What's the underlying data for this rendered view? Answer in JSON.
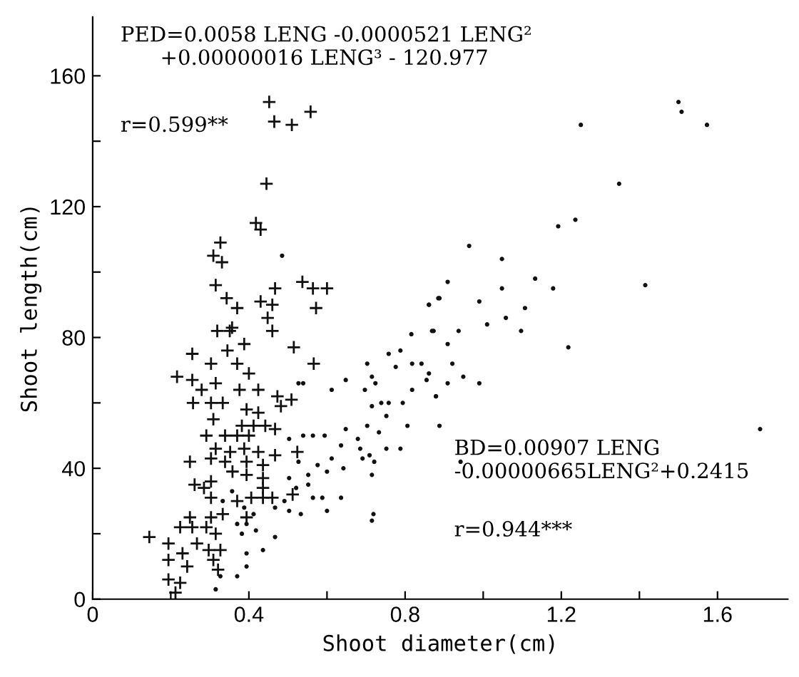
{
  "chart_data": {
    "type": "scatter",
    "xlabel": "Shoot diameter(cm)",
    "ylabel": "Shoot length(cm)",
    "xlim": [
      0,
      1.78
    ],
    "ylim": [
      0,
      178
    ],
    "xticks": [
      0,
      {
        "value": 0.2,
        "label": null
      },
      0.4,
      {
        "value": 0.6,
        "label": null
      },
      0.8,
      {
        "value": 1.0,
        "label": null
      },
      1.2,
      {
        "value": 1.4,
        "label": null
      },
      1.6
    ],
    "yticks": [
      0,
      {
        "value": 20,
        "label": null
      },
      40,
      {
        "value": 60,
        "label": null
      },
      80,
      {
        "value": 100,
        "label": null
      },
      120,
      {
        "value": 140,
        "label": null
      },
      160
    ],
    "grid": false,
    "legend": false,
    "annotations": [
      "PED=0.0058 LENG -0.0000521 LENG²\n      +0.00000016 LENG³ - 120.977",
      "r=0.599**",
      "BD=0.00907 LENG\n-0.00000665LENG²+0.2415",
      "r=0.944***"
    ],
    "series": [
      {
        "color": "#111111",
        "marker": "cross",
        "x": [
          0.452,
          0.465,
          0.51,
          0.558,
          0.445,
          0.418,
          0.43,
          0.327,
          0.309,
          0.331,
          0.315,
          0.467,
          0.537,
          0.564,
          0.6,
          0.343,
          0.37,
          0.43,
          0.46,
          0.572,
          0.448,
          0.46,
          0.319,
          0.357,
          0.351,
          0.388,
          0.345,
          0.515,
          0.566,
          0.255,
          0.216,
          0.255,
          0.303,
          0.37,
          0.4,
          0.279,
          0.315,
          0.376,
          0.424,
          0.257,
          0.303,
          0.333,
          0.394,
          0.424,
          0.473,
          0.509,
          0.482,
          0.309,
          0.382,
          0.412,
          0.442,
          0.467,
          0.291,
          0.339,
          0.37,
          0.4,
          0.315,
          0.352,
          0.388,
          0.424,
          0.467,
          0.524,
          0.249,
          0.303,
          0.339,
          0.394,
          0.436,
          0.261,
          0.285,
          0.303,
          0.358,
          0.394,
          0.436,
          0.436,
          0.303,
          0.37,
          0.406,
          0.436,
          0.46,
          0.512,
          0.249,
          0.303,
          0.333,
          0.394,
          0.145,
          0.224,
          0.255,
          0.291,
          0.315,
          0.194,
          0.23,
          0.267,
          0.297,
          0.327,
          0.194,
          0.242,
          0.309,
          0.321,
          0.194,
          0.224,
          0.212
        ],
        "values": [
          152,
          146,
          145,
          149,
          127,
          115,
          113,
          109,
          105,
          103,
          96,
          95,
          97,
          95,
          95,
          92,
          89,
          91,
          90,
          89,
          86,
          82,
          82,
          83,
          82,
          78,
          76,
          77,
          72,
          75,
          68,
          67,
          72,
          72,
          69,
          64,
          66,
          64,
          64,
          60,
          60,
          60,
          58,
          57,
          62,
          61,
          59,
          55,
          53,
          53,
          53,
          52,
          50,
          50,
          50,
          50,
          46,
          45,
          46,
          45,
          44,
          45,
          42,
          43,
          42,
          42,
          41,
          35,
          34,
          36,
          39,
          38,
          37,
          34,
          31,
          30,
          31,
          31,
          31,
          32,
          25,
          25,
          26,
          25,
          19,
          22,
          22,
          22,
          20,
          17,
          14,
          17,
          15,
          15,
          12,
          10,
          12,
          9,
          6,
          5,
          2
        ]
      },
      {
        "color": "#111111",
        "marker": "circle",
        "x": [
          0.485,
          0.527,
          0.539,
          0.648,
          0.612,
          0.703,
          0.758,
          0.788,
          0.816,
          0.861,
          0.873,
          0.885,
          0.715,
          0.715,
          0.697,
          0.724,
          0.776,
          0.818,
          0.842,
          0.818,
          0.855,
          0.879,
          0.739,
          0.758,
          0.752,
          0.794,
          0.806,
          0.648,
          0.703,
          0.733,
          0.788,
          0.752,
          0.503,
          0.539,
          0.564,
          0.594,
          0.636,
          0.679,
          0.685,
          0.709,
          0.691,
          0.721,
          0.612,
          0.576,
          0.642,
          0.715,
          0.527,
          0.552,
          0.6,
          0.503,
          0.521,
          0.552,
          0.564,
          0.588,
          0.636,
          0.491,
          0.467,
          0.503,
          0.533,
          0.6,
          0.388,
          0.412,
          0.37,
          0.394,
          0.418,
          0.467,
          0.382,
          0.394,
          0.394,
          0.37,
          0.327,
          0.315,
          0.436,
          0.715,
          0.357,
          0.333,
          0.964,
          1.048,
          1.192,
          1.236,
          0.909,
          1.048,
          1.133,
          1.179,
          0.861,
          0.888,
          0.99,
          1.107,
          0.869,
          0.937,
          1.01,
          1.058,
          1.097,
          0.909,
          1.218,
          1.415,
          1.709,
          0.921,
          0.949,
          0.99,
          0.861,
          0.909,
          0.879,
          0.888,
          0.942,
          0.719,
          1.5,
          1.508,
          1.573,
          1.25,
          1.348
        ],
        "values": [
          105,
          66,
          66,
          67,
          64,
          72,
          75,
          76,
          81,
          90,
          82,
          92,
          68,
          59,
          64,
          66,
          71,
          72,
          72,
          64,
          67,
          62,
          60,
          60,
          56,
          60,
          53,
          52,
          53,
          51,
          46,
          46,
          49,
          50,
          50,
          50,
          47,
          49,
          46,
          44,
          43,
          42,
          43,
          41,
          40,
          38,
          42,
          38,
          39,
          37,
          34,
          35,
          31,
          31,
          31,
          30,
          28,
          27,
          26,
          27,
          28,
          26,
          23,
          23,
          21,
          19,
          20,
          14,
          10,
          7,
          7,
          3,
          15,
          24,
          33,
          30,
          108,
          104,
          114,
          116,
          97,
          95,
          98,
          95,
          90,
          92,
          91,
          89,
          82,
          82,
          84,
          86,
          82,
          78,
          77,
          96,
          52,
          72,
          68,
          66,
          69,
          66,
          62,
          53,
          42,
          26,
          152,
          149,
          145,
          145,
          127
        ]
      }
    ]
  }
}
